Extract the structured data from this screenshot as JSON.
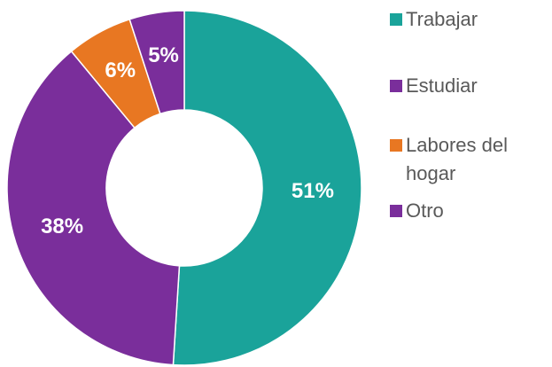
{
  "chart_data": {
    "type": "donut",
    "categories": [
      "Trabajar",
      "Estudiar",
      "Labores del hogar",
      "Otro"
    ],
    "values": [
      51,
      38,
      6,
      5
    ],
    "value_labels": [
      "51%",
      "38%",
      "6%",
      "5%"
    ],
    "colors": [
      "#1aa39a",
      "#7a2e9b",
      "#e87722",
      "#7a2e9b"
    ]
  }
}
